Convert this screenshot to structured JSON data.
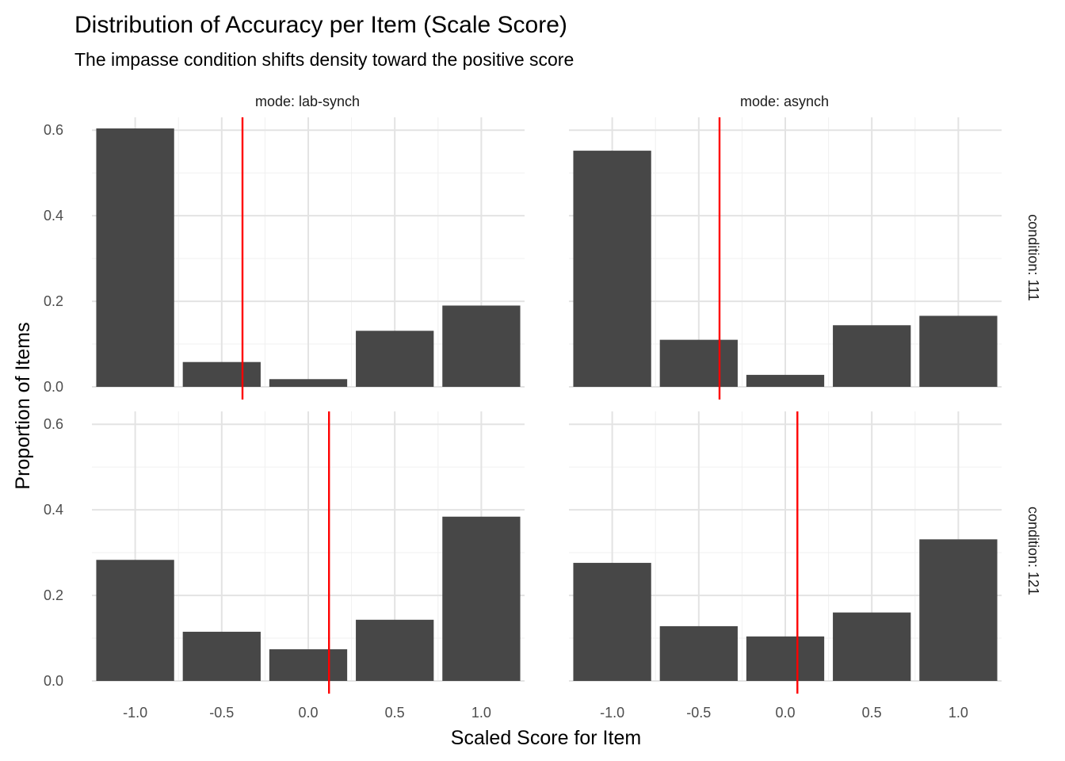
{
  "chart_data": {
    "type": "bar",
    "title": "Distribution of Accuracy per Item (Scale Score)",
    "subtitle": "The impasse condition shifts density toward the positive score",
    "xlabel": "Scaled Score for Item",
    "ylabel": "Proportion of Items",
    "x_ticks": [
      "-1.0",
      "-0.5",
      "0.0",
      "0.5",
      "1.0"
    ],
    "y_ticks": [
      "0.0",
      "0.2",
      "0.4",
      "0.6"
    ],
    "xlim": [
      -1.25,
      1.25
    ],
    "ylim": [
      0,
      0.63
    ],
    "grid": true,
    "bar_color": "#474747",
    "reference_line_color": "#ff0000",
    "column_strip_labels": [
      "mode: lab-synch",
      "mode: asynch"
    ],
    "row_strip_labels": [
      "condition: 111",
      "condition: 121"
    ],
    "categories": [
      -1.0,
      -0.5,
      0.0,
      0.5,
      1.0
    ],
    "panels": [
      {
        "mode": "lab-synch",
        "condition": "111",
        "values": [
          0.604,
          0.058,
          0.018,
          0.131,
          0.19
        ],
        "mean": -0.38
      },
      {
        "mode": "asynch",
        "condition": "111",
        "values": [
          0.552,
          0.11,
          0.028,
          0.144,
          0.166
        ],
        "mean": -0.38
      },
      {
        "mode": "lab-synch",
        "condition": "121",
        "values": [
          0.283,
          0.115,
          0.074,
          0.143,
          0.384
        ],
        "mean": 0.12
      },
      {
        "mode": "asynch",
        "condition": "121",
        "values": [
          0.276,
          0.128,
          0.104,
          0.16,
          0.331
        ],
        "mean": 0.07
      }
    ]
  }
}
